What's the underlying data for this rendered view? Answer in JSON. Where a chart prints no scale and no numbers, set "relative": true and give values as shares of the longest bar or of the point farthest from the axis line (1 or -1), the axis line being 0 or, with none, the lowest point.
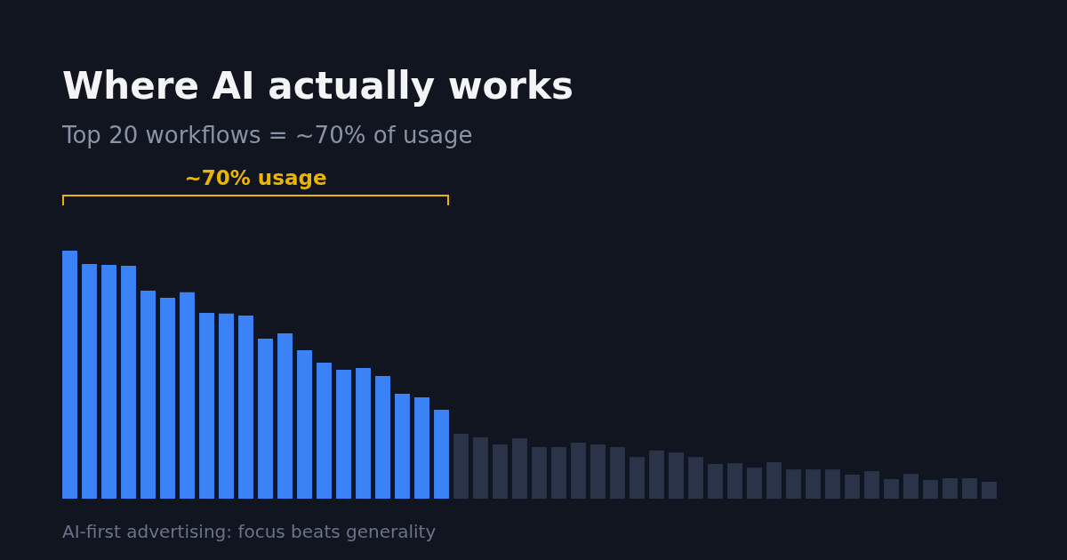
{
  "chart_data": {
    "type": "bar",
    "relative": true,
    "title": "Where AI actually works",
    "subtitle": "Top 20 workflows = ~70% of usage",
    "annotations": [
      "~70% usage",
      "AI-first advertising: focus beats generality"
    ],
    "categories": [
      null,
      null,
      null,
      null,
      null,
      null,
      null,
      null,
      null,
      null,
      null,
      null,
      null,
      null,
      null,
      null,
      null,
      null,
      null,
      null,
      null,
      null,
      null,
      null,
      null,
      null,
      null,
      null,
      null,
      null,
      null,
      null,
      null,
      null,
      null,
      null,
      null,
      null,
      null,
      null,
      null,
      null,
      null,
      null,
      null,
      null,
      null,
      null
    ],
    "values": [
      1,
      0.946,
      0.943,
      0.939,
      0.839,
      0.81,
      0.832,
      0.749,
      0.746,
      0.738,
      0.645,
      0.667,
      0.599,
      0.548,
      0.52,
      0.527,
      0.495,
      0.423,
      0.409,
      0.358,
      0.262,
      0.247,
      0.219,
      0.244,
      0.208,
      0.208,
      0.226,
      0.219,
      0.208,
      0.168,
      0.194,
      0.186,
      0.168,
      0.14,
      0.143,
      0.125,
      0.147,
      0.118,
      0.118,
      0.118,
      0.097,
      0.111,
      0.079,
      0.1,
      0.075,
      0.082,
      0.082,
      0.068
    ],
    "colors": [
      "#3b82f6",
      "#3b82f6",
      "#3b82f6",
      "#3b82f6",
      "#3b82f6",
      "#3b82f6",
      "#3b82f6",
      "#3b82f6",
      "#3b82f6",
      "#3b82f6",
      "#3b82f6",
      "#3b82f6",
      "#3b82f6",
      "#3b82f6",
      "#3b82f6",
      "#3b82f6",
      "#3b82f6",
      "#3b82f6",
      "#3b82f6",
      "#3b82f6",
      "#2a3347",
      "#2a3347",
      "#2a3347",
      "#2a3347",
      "#2a3347",
      "#2a3347",
      "#2a3347",
      "#2a3347",
      "#2a3347",
      "#2a3347",
      "#2a3347",
      "#2a3347",
      "#2a3347",
      "#2a3347",
      "#2a3347",
      "#2a3347",
      "#2a3347",
      "#2a3347",
      "#2a3347",
      "#2a3347",
      "#2a3347",
      "#2a3347",
      "#2a3347",
      "#2a3347",
      "#2a3347",
      "#2a3347",
      "#2a3347",
      "#2a3347"
    ]
  }
}
